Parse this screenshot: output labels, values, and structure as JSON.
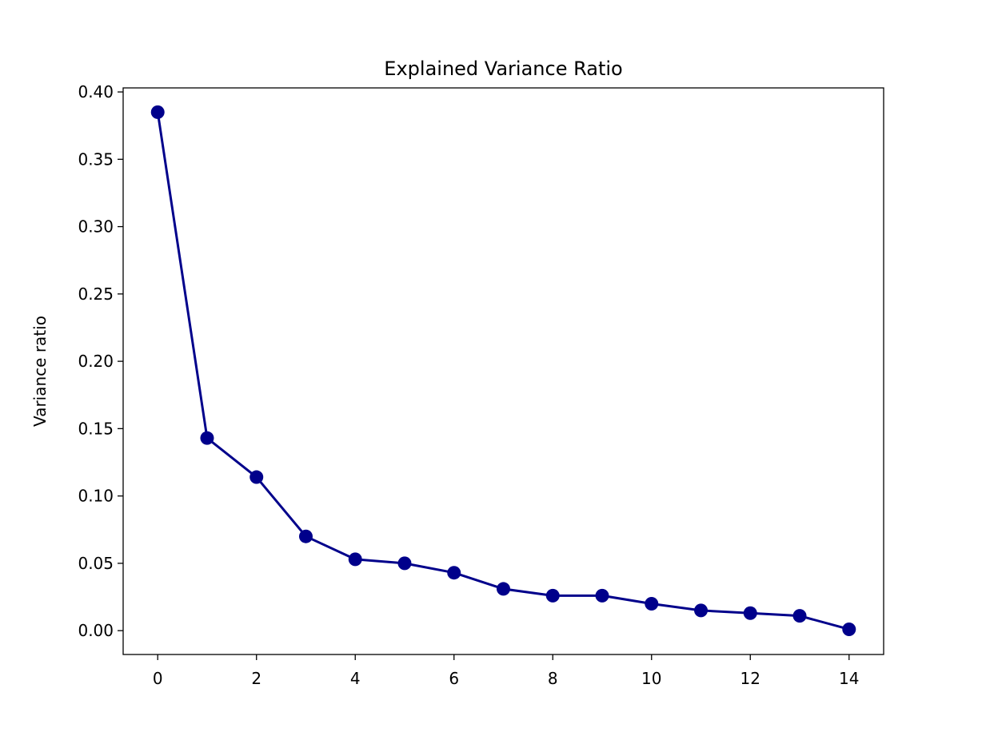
{
  "chart_data": {
    "type": "line",
    "title": "Explained Variance Ratio",
    "xlabel": "",
    "ylabel": "Variance ratio",
    "xlim": [
      -0.7,
      14.7
    ],
    "ylim": [
      -0.0177,
      0.403
    ],
    "x_ticks": [
      0,
      2,
      4,
      6,
      8,
      10,
      12,
      14
    ],
    "y_ticks": [
      0.0,
      0.05,
      0.1,
      0.15,
      0.2,
      0.25,
      0.3,
      0.35,
      0.4
    ],
    "y_tick_labels": [
      "0.00",
      "0.05",
      "0.10",
      "0.15",
      "0.20",
      "0.25",
      "0.30",
      "0.35",
      "0.40"
    ],
    "x_tick_labels": [
      "0",
      "2",
      "4",
      "6",
      "8",
      "10",
      "12",
      "14"
    ],
    "grid": false,
    "color": "#00008b",
    "series": [
      {
        "x": [
          0,
          1,
          2,
          3,
          4,
          5,
          6,
          7,
          8,
          9,
          10,
          11,
          12,
          13,
          14
        ],
        "y": [
          0.385,
          0.143,
          0.114,
          0.07,
          0.053,
          0.05,
          0.043,
          0.031,
          0.026,
          0.026,
          0.02,
          0.015,
          0.013,
          0.011,
          0.001
        ]
      }
    ]
  }
}
